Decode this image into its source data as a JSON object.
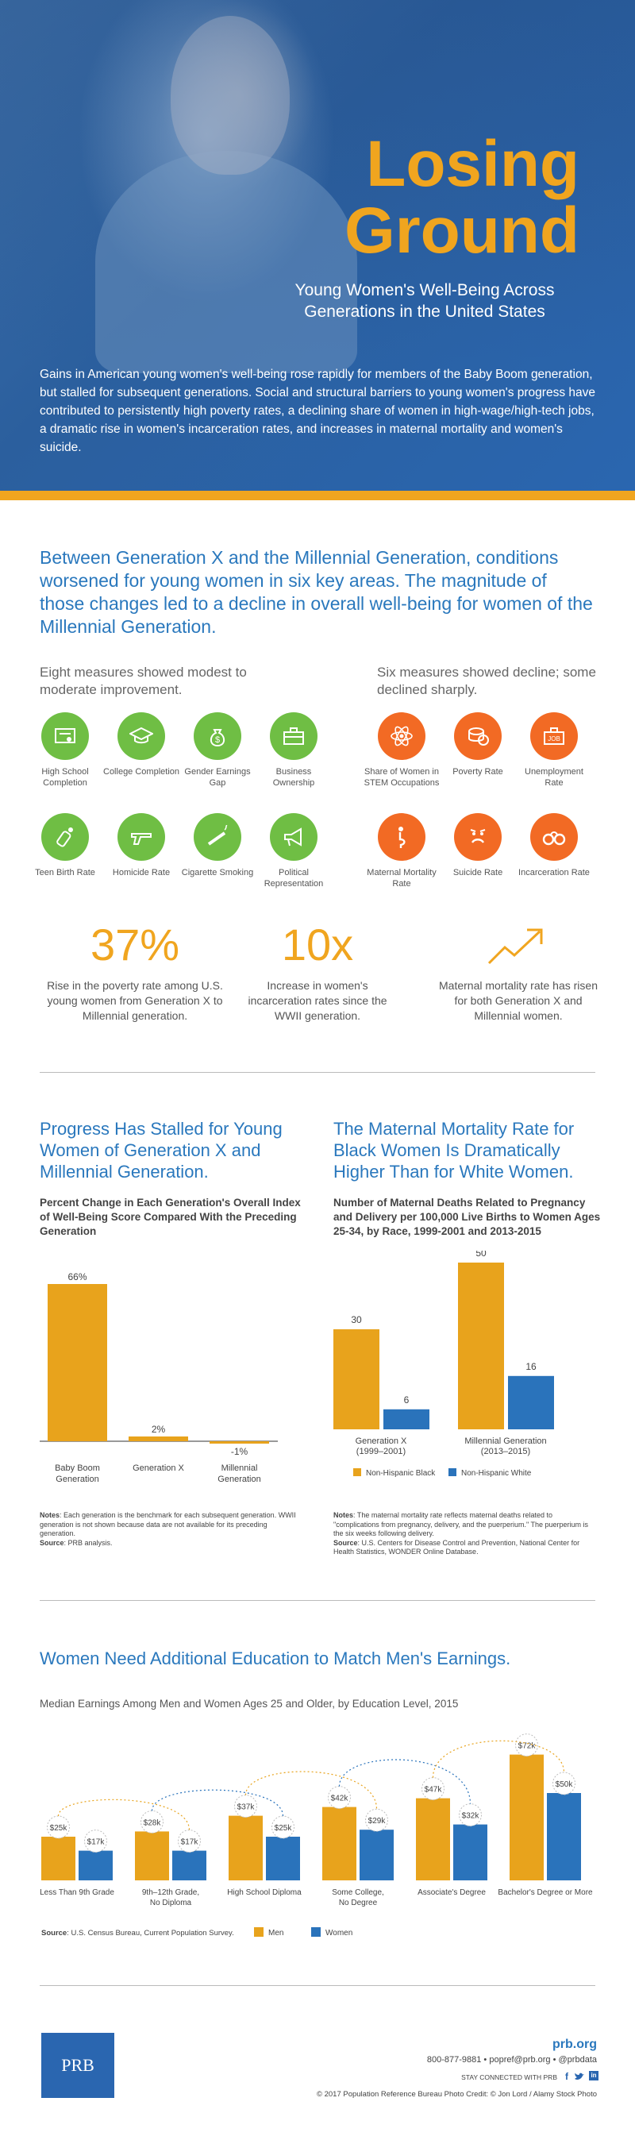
{
  "hero": {
    "title_line1": "Losing",
    "title_line2": "Ground",
    "subtitle": "Young Women's Well-Being Across Generations in the United States",
    "intro": "Gains in American young women's well-being rose rapidly for members of the Baby Boom generation, but stalled for subsequent generations. Social and structural barriers to young women's progress have contributed to persistently high poverty rates, a declining share of women in high-wage/high-tech jobs, a dramatic rise in women's incarceration rates, and increases in maternal mortality and women's suicide."
  },
  "colors": {
    "accent_orange": "#f0a51f",
    "blue": "#2a78bd",
    "green": "#6fbe44",
    "red_orange": "#f26a24",
    "dark_blue": "#2a66b0"
  },
  "overview": {
    "heading": "Between Generation X and the Millennial Generation, conditions worsened for young women in six key areas. The magnitude of those changes led to a decline in overall well-being for women of the Millennial Generation.",
    "improved_label": "Eight measures showed modest to moderate improvement.",
    "declined_label": "Six measures showed decline; some declined sharply.",
    "improved": [
      {
        "label": "High School Completion",
        "icon": "diploma-icon"
      },
      {
        "label": "College Completion",
        "icon": "graduation-cap-icon"
      },
      {
        "label": "Gender Earnings Gap",
        "icon": "money-bag-icon"
      },
      {
        "label": "Business Ownership",
        "icon": "briefcase-icon"
      },
      {
        "label": "Teen Birth Rate",
        "icon": "baby-bottle-icon"
      },
      {
        "label": "Homicide Rate",
        "icon": "gun-icon"
      },
      {
        "label": "Cigarette Smoking",
        "icon": "cigarette-icon"
      },
      {
        "label": "Political Representation",
        "icon": "megaphone-icon"
      }
    ],
    "declined": [
      {
        "label": "Share of Women in STEM Occupations",
        "icon": "atom-icon"
      },
      {
        "label": "Poverty Rate",
        "icon": "coins-icon"
      },
      {
        "label": "Unemployment Rate",
        "icon": "unemployment-briefcase-icon"
      },
      {
        "label": "Maternal Mortality Rate",
        "icon": "pregnancy-icon"
      },
      {
        "label": "Suicide Rate",
        "icon": "sad-face-icon"
      },
      {
        "label": "Incarceration Rate",
        "icon": "handcuffs-icon"
      }
    ],
    "stats": [
      {
        "value": "37%",
        "text": "Rise in the poverty rate among U.S. young women from Generation X to Millennial generation."
      },
      {
        "value": "10x",
        "text": "Increase in women's incarceration rates since the WWII generation."
      },
      {
        "value": "",
        "icon": "trend-up-arrow-icon",
        "text": "Maternal mortality rate has risen for both Generation X and Millennial women."
      }
    ]
  },
  "progress": {
    "title": "Progress Has Stalled for Young Women of Generation X and Millennial Generation.",
    "subtitle": "Percent Change in Each Generation's Overall Index of Well-Being Score Compared With the Preceding Generation",
    "notes_label": "Notes",
    "notes": ": Each generation is the benchmark for each subsequent generation. WWII generation is not shown because data are not available for its preceding generation.",
    "source_label": "Source",
    "source": ": PRB analysis."
  },
  "maternal": {
    "title": "The Maternal Mortality Rate for Black Women Is Dramatically Higher Than for White Women.",
    "subtitle": "Number of Maternal Deaths Related to Pregnancy and Delivery per 100,000 Live Births to Women Ages 25-34, by Race, 1999-2001 and 2013-2015",
    "notes_label": "Notes",
    "notes": ": The maternal mortality rate reflects maternal deaths related to \"complications from pregnancy, delivery, and the puerperium.\" The puerperium is the six weeks following delivery.",
    "source_label": "Source",
    "source": ": U.S. Centers for Disease Control and Prevention, National Center for Health Statistics, WONDER Online Database."
  },
  "earnings": {
    "title": "Women Need Additional Education to Match Men's Earnings.",
    "subtitle": "Median Earnings Among Men and Women Ages 25 and Older, by Education Level, 2015",
    "source_label": "Source",
    "source": ": U.S. Census Bureau, Current Population Survey."
  },
  "chart_data": [
    {
      "type": "bar",
      "title": "Progress Has Stalled for Young Women of Generation X and Millennial Generation.",
      "subtitle": "Percent Change in Each Generation's Overall Index of Well-Being Score Compared With the Preceding Generation",
      "categories": [
        "Baby Boom Generation",
        "Generation X",
        "Millennial Generation"
      ],
      "values": [
        66,
        2,
        -1
      ],
      "value_labels": [
        "66%",
        "2%",
        "-1%"
      ],
      "color": "#e8a31c"
    },
    {
      "type": "bar",
      "title": "The Maternal Mortality Rate for Black Women Is Dramatically Higher Than for White Women.",
      "categories": [
        "Generation X (1999–2001)",
        "Millennial Generation (2013–2015)"
      ],
      "category_lines": [
        [
          "Generation X",
          "(1999–2001)"
        ],
        [
          "Millennial Generation",
          "(2013–2015)"
        ]
      ],
      "series": [
        {
          "name": "Non-Hispanic Black",
          "values": [
            30,
            50
          ],
          "color": "#e8a31c"
        },
        {
          "name": "Non-Hispanic White",
          "values": [
            6,
            16
          ],
          "color": "#2a73bb"
        }
      ],
      "legend": "bottom"
    },
    {
      "type": "bar",
      "title": "Women Need Additional Education to Match Men's Earnings.",
      "subtitle": "Median Earnings Among Men and Women Ages 25 and Older, by Education Level, 2015",
      "categories": [
        "Less Than 9th Grade",
        "9th–12th Grade, No Diploma",
        "High School Diploma",
        "Some College, No Degree",
        "Associate's Degree",
        "Bachelor's Degree or More"
      ],
      "category_lines": [
        [
          "Less Than 9th Grade"
        ],
        [
          "9th–12th Grade,",
          "No Diploma"
        ],
        [
          "High School Diploma"
        ],
        [
          "Some College,",
          "No Degree"
        ],
        [
          "Associate's Degree"
        ],
        [
          "Bachelor's Degree or More"
        ]
      ],
      "series": [
        {
          "name": "Men",
          "values": [
            25,
            28,
            37,
            42,
            47,
            72
          ],
          "labels": [
            "$25k",
            "$28k",
            "$37k",
            "$42k",
            "$47k",
            "$72k"
          ],
          "color": "#e8a31c"
        },
        {
          "name": "Women",
          "values": [
            17,
            17,
            25,
            29,
            32,
            50
          ],
          "labels": [
            "$17k",
            "$17k",
            "$25k",
            "$29k",
            "$32k",
            "$50k"
          ],
          "color": "#2a73bb"
        }
      ],
      "legend": "bottom"
    }
  ],
  "footer": {
    "logo": "PRB",
    "site": "prb.org",
    "contact": "800-877-9881  •  popref@prb.org  •  @prbdata",
    "connect": "STAY CONNECTED WITH PRB",
    "copyright": "© 2017 Population Reference Bureau  Photo Credit: © Jon Lord / Alamy Stock Photo"
  }
}
